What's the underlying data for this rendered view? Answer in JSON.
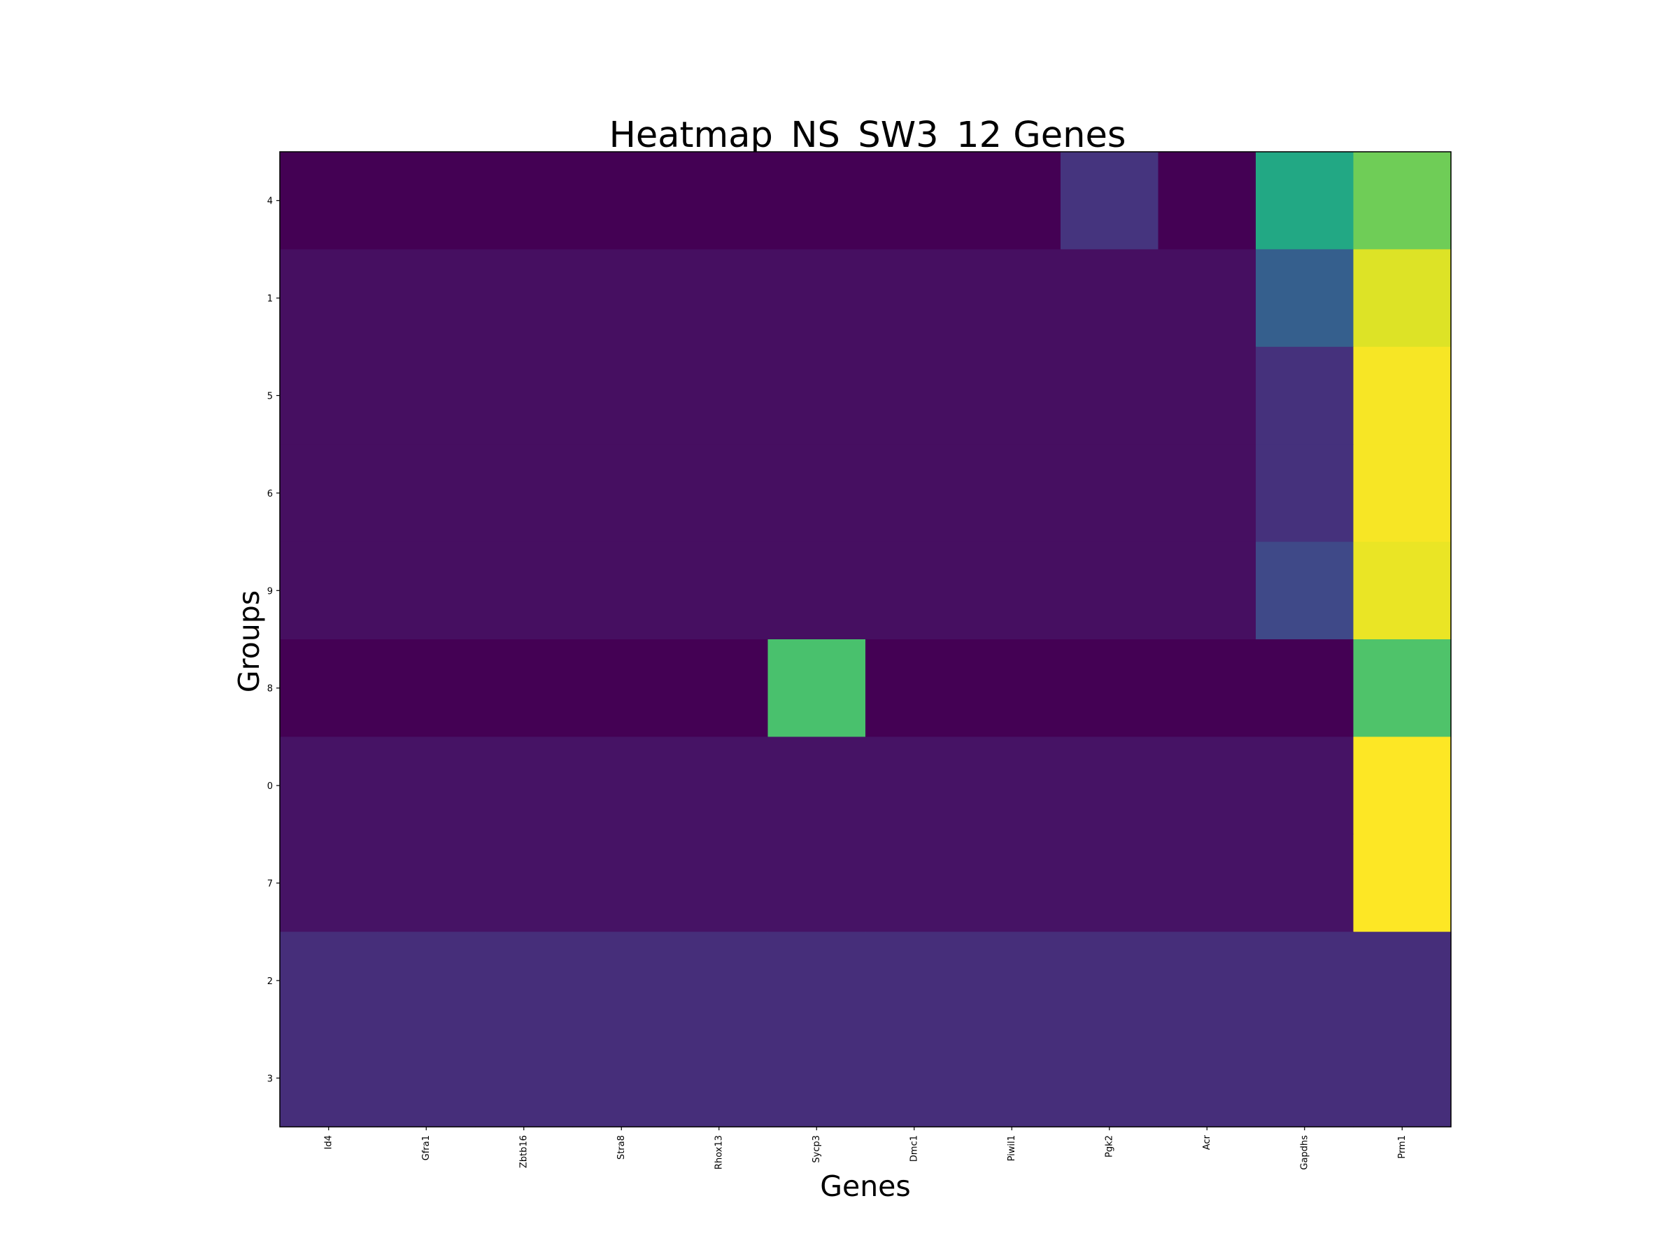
{
  "chart_data": {
    "type": "heatmap",
    "title": "Heatmap_NS_SW3_12 Genes",
    "xlabel": "Genes",
    "ylabel": "Groups",
    "x_categories": [
      "Id4",
      "Gfra1",
      "Zbtb16",
      "Stra8",
      "Rhox13",
      "Sycp3",
      "Dmc1",
      "Piwil1",
      "Pgk2",
      "Acr",
      "Gapdhs",
      "Prm1"
    ],
    "y_categories": [
      "4",
      "1",
      "5",
      "6",
      "9",
      "8",
      "0",
      "7",
      "2",
      "3"
    ],
    "colormap": "viridis",
    "vrange": [
      0,
      1
    ],
    "values": [
      [
        0.0,
        0.0,
        0.0,
        0.0,
        0.0,
        0.0,
        0.0,
        0.0,
        0.15,
        0.0,
        0.6,
        0.78
      ],
      [
        0.04,
        0.04,
        0.04,
        0.04,
        0.04,
        0.04,
        0.04,
        0.04,
        0.04,
        0.04,
        0.3,
        0.95
      ],
      [
        0.04,
        0.04,
        0.04,
        0.04,
        0.04,
        0.04,
        0.04,
        0.04,
        0.04,
        0.04,
        0.14,
        0.99
      ],
      [
        0.04,
        0.04,
        0.04,
        0.04,
        0.04,
        0.04,
        0.04,
        0.04,
        0.04,
        0.04,
        0.14,
        0.99
      ],
      [
        0.04,
        0.04,
        0.04,
        0.04,
        0.04,
        0.04,
        0.04,
        0.04,
        0.04,
        0.04,
        0.22,
        0.97
      ],
      [
        0.0,
        0.0,
        0.0,
        0.0,
        0.0,
        0.71,
        0.0,
        0.0,
        0.0,
        0.0,
        0.0,
        0.72
      ],
      [
        0.05,
        0.05,
        0.05,
        0.05,
        0.05,
        0.05,
        0.05,
        0.05,
        0.05,
        0.05,
        0.05,
        1.0
      ],
      [
        0.05,
        0.05,
        0.05,
        0.05,
        0.05,
        0.05,
        0.05,
        0.05,
        0.05,
        0.05,
        0.05,
        1.0
      ],
      [
        0.13,
        0.13,
        0.13,
        0.13,
        0.13,
        0.13,
        0.13,
        0.13,
        0.13,
        0.13,
        0.13,
        0.13
      ],
      [
        0.13,
        0.13,
        0.13,
        0.13,
        0.13,
        0.13,
        0.13,
        0.13,
        0.13,
        0.13,
        0.13,
        0.13
      ]
    ]
  }
}
